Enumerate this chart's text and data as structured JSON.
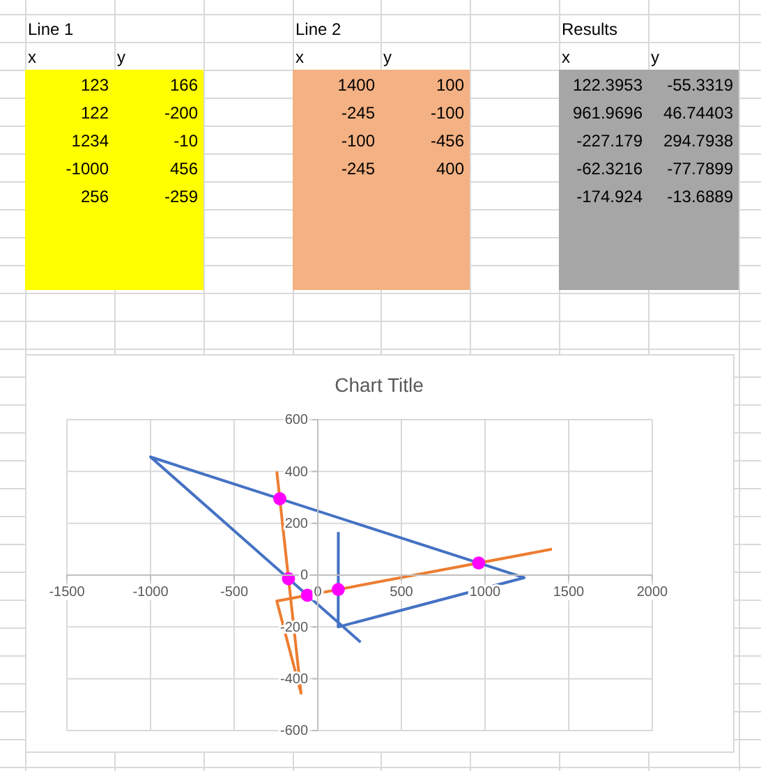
{
  "chart_data": {
    "type": "scatter",
    "title": "Chart Title",
    "xlim": [
      -1500,
      2000
    ],
    "xticks": [
      -1500,
      -1000,
      -500,
      0,
      500,
      1000,
      1500,
      2000
    ],
    "ylim": [
      -600,
      600
    ],
    "yticks": [
      -600,
      -400,
      -200,
      0,
      200,
      400,
      600
    ],
    "grid": true,
    "annotations": [
      "Line 1",
      "x",
      "y",
      "123",
      "166",
      "122",
      "-200",
      "1234",
      "-10",
      "-1000",
      "456",
      "256",
      "-259",
      "Line 2",
      "x",
      "y",
      "1400",
      "100",
      "-245",
      "-100",
      "-100",
      "-456",
      "-245",
      "400",
      "Results",
      "x",
      "y",
      "122.3953",
      "-55.3319",
      "961.9696",
      "46.74403",
      "-227.179",
      "294.7938",
      "-62.3216",
      "-77.7899",
      "-174.924",
      "-13.6889"
    ],
    "series": [
      {
        "type": "line",
        "color": "#4472c4",
        "marker": "none",
        "line_style": "solid",
        "x": [
          123,
          122,
          1234,
          -1000,
          256
        ],
        "values": [
          166,
          -200,
          -10,
          456,
          -259
        ]
      },
      {
        "type": "line",
        "color": "#ed7d31",
        "marker": "none",
        "line_style": "solid",
        "x": [
          1400,
          -245,
          -100,
          -245
        ],
        "values": [
          100,
          -100,
          -456,
          400
        ]
      },
      {
        "color": "#ff00ff",
        "marker": "circle",
        "x": [
          122.3953,
          961.9696,
          -227.179,
          -62.3216,
          -174.924
        ],
        "values": [
          -55.3319,
          46.74403,
          294.7938,
          -77.7899,
          -13.6889
        ]
      }
    ]
  }
}
